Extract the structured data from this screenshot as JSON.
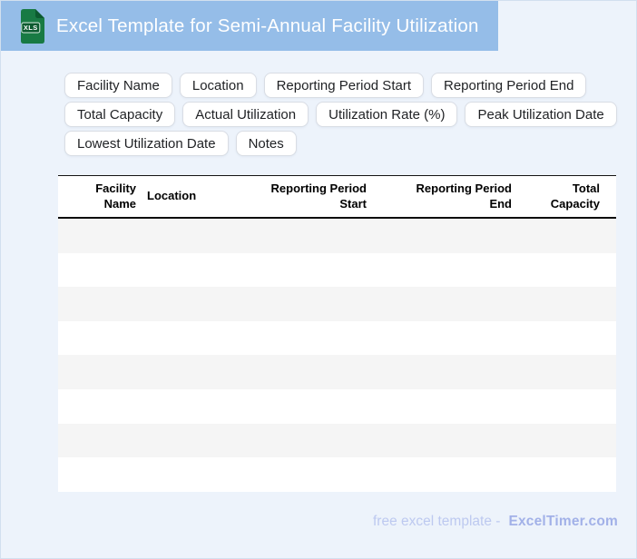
{
  "header": {
    "title": "Excel Template for Semi-Annual Facility Utilization",
    "file_type": "XLS"
  },
  "field_chips": [
    "Facility Name",
    "Location",
    "Reporting Period Start",
    "Reporting Period End",
    "Total Capacity",
    "Actual Utilization",
    "Utilization Rate (%)",
    "Peak Utilization Date",
    "Lowest Utilization Date",
    "Notes"
  ],
  "table": {
    "columns": [
      {
        "label": "Facility Name",
        "lines": [
          "Facility",
          "Name"
        ],
        "align": "right"
      },
      {
        "label": "Location",
        "lines": [
          "Location"
        ],
        "align": "left"
      },
      {
        "label": "Reporting Period Start",
        "lines": [
          "Reporting Period",
          "Start"
        ],
        "align": "right"
      },
      {
        "label": "Reporting Period End",
        "lines": [
          "Reporting Period",
          "End"
        ],
        "align": "right"
      },
      {
        "label": "Total Capacity",
        "lines": [
          "Total",
          "Capacity"
        ],
        "align": "right"
      }
    ],
    "empty_row_count": 8
  },
  "footer": {
    "label": "free excel template -",
    "brand": "ExcelTimer.com"
  },
  "colors": {
    "header_bar": "#95BDE8",
    "page_bg": "#EDF3FB",
    "row_stripe": "#F5F5F5",
    "icon_green": "#187A44",
    "icon_green_dark": "#0C5A30",
    "footer_text": "#BDC9F0",
    "footer_brand": "#A2B1E8"
  }
}
